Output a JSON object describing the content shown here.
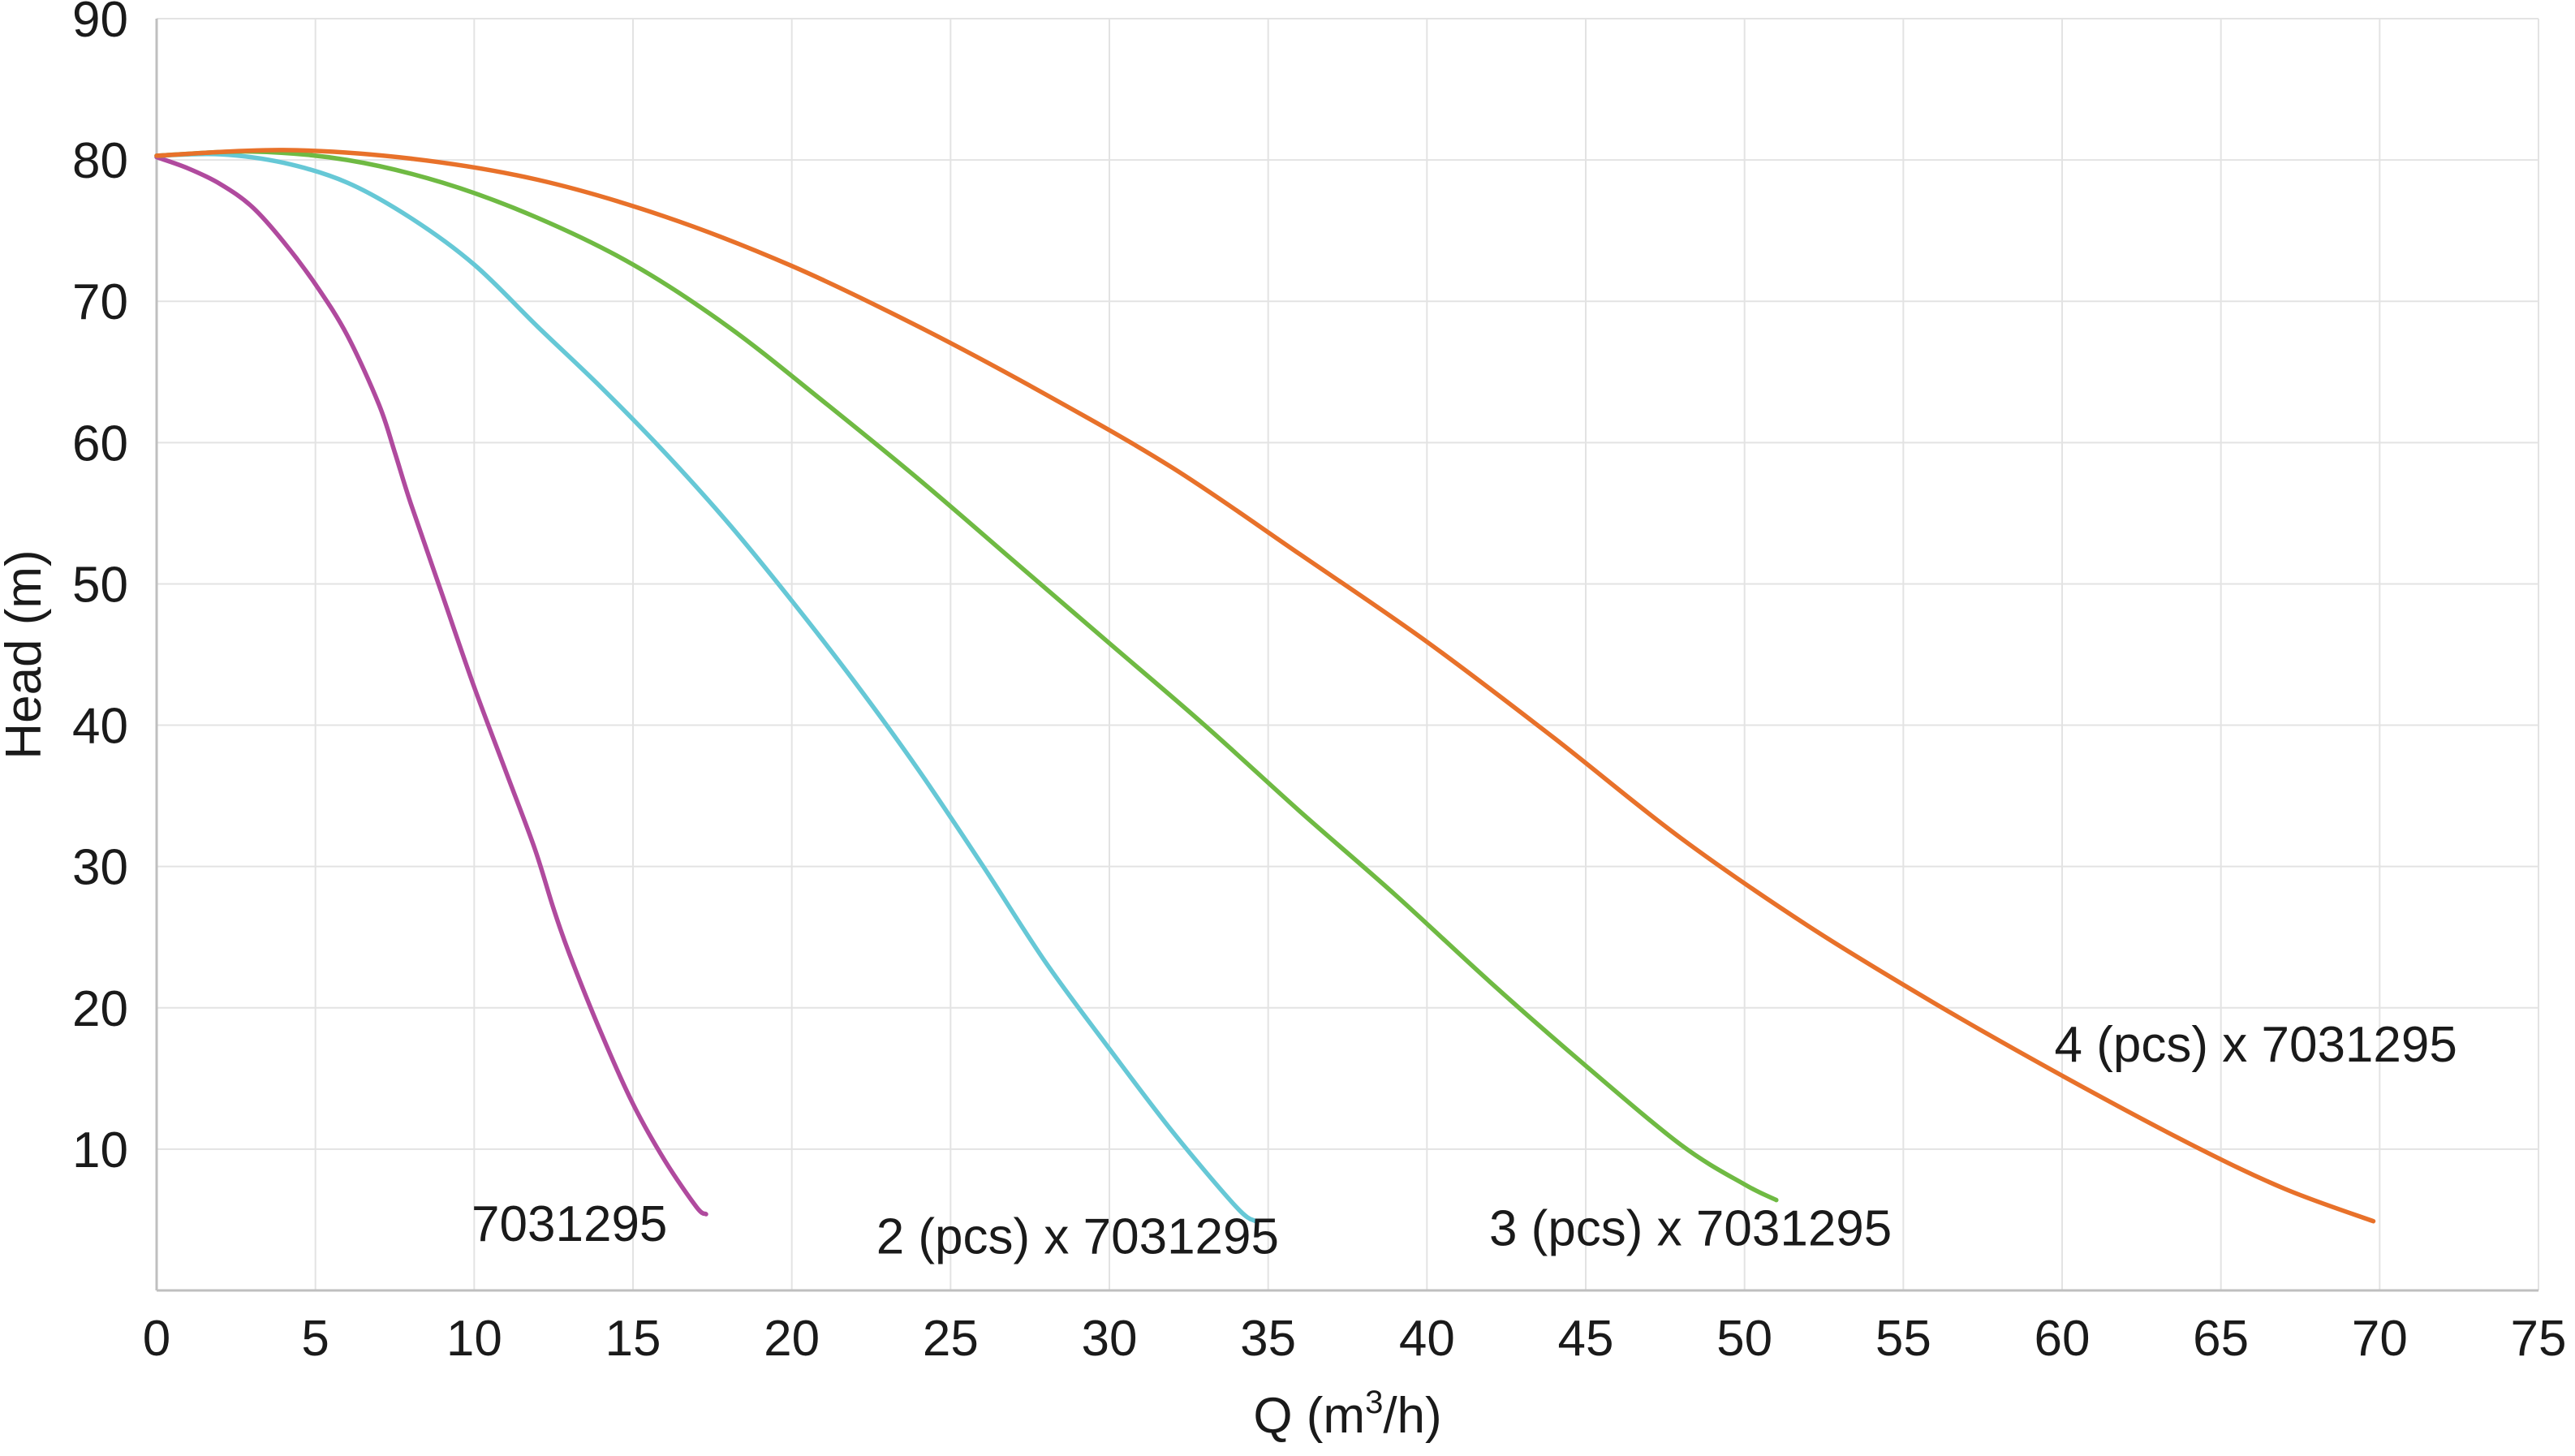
{
  "chart_data": {
    "type": "line",
    "title": "",
    "xlabel": "Q (m³/h)",
    "xlabel_parts": {
      "base": "Q (m",
      "sup": "3",
      "tail": "/h)"
    },
    "ylabel": "Head (m)",
    "xlim": [
      0,
      75
    ],
    "ylim": [
      0,
      90
    ],
    "x_ticks": [
      0,
      5,
      10,
      15,
      20,
      25,
      30,
      35,
      40,
      45,
      50,
      55,
      60,
      65,
      70,
      75
    ],
    "y_ticks": [
      10,
      20,
      30,
      40,
      50,
      60,
      70,
      80,
      90
    ],
    "grid": true,
    "legend": "none (series labelled directly on the plot)",
    "series": [
      {
        "name": "7031295",
        "color": "#b04a9e",
        "x": [
          0,
          1,
          2,
          3,
          4,
          5,
          6,
          7,
          7.5,
          8,
          9,
          10,
          11,
          11.9,
          12.5,
          13,
          14,
          15,
          16,
          17,
          17.3
        ],
        "y": [
          80.2,
          79.4,
          78.3,
          76.7,
          74.2,
          71.2,
          67.6,
          62.7,
          59.3,
          55.7,
          49.2,
          42.7,
          36.7,
          31.3,
          27.0,
          23.8,
          18.2,
          13.2,
          9.2,
          5.9,
          5.4
        ]
      },
      {
        "name": "2 (pcs) x 7031295",
        "color": "#66c8d6",
        "x": [
          0,
          2,
          4,
          6,
          8,
          10,
          12,
          14,
          16,
          18,
          20,
          22,
          24,
          26,
          28,
          30,
          32,
          34,
          34.6
        ],
        "y": [
          80.3,
          80.4,
          79.8,
          78.4,
          75.9,
          72.6,
          68.2,
          63.9,
          59.3,
          54.3,
          48.8,
          43.0,
          36.8,
          30.1,
          23.2,
          17.1,
          11.2,
          5.9,
          4.9
        ]
      },
      {
        "name": "3 (pcs) x 7031295",
        "color": "#6fba43",
        "x": [
          0,
          3,
          6,
          9,
          12,
          15,
          18,
          21,
          24,
          27,
          30,
          33,
          36,
          39,
          42,
          45,
          48,
          50,
          51
        ],
        "y": [
          80.3,
          80.6,
          80.0,
          78.4,
          75.9,
          72.6,
          68.2,
          62.9,
          57.4,
          51.6,
          45.8,
          40.0,
          33.9,
          28.0,
          21.8,
          15.9,
          10.3,
          7.5,
          6.4
        ]
      },
      {
        "name": "4 (pcs) x 7031295",
        "color": "#e8712a",
        "x": [
          0,
          4,
          8,
          12,
          16,
          20,
          24,
          28,
          32,
          36,
          40,
          44,
          48,
          52,
          56,
          60,
          64,
          67,
          69.8
        ],
        "y": [
          80.3,
          80.7,
          80.1,
          78.6,
          76.0,
          72.5,
          68.2,
          63.4,
          58.2,
          52.1,
          45.9,
          39.1,
          32.0,
          25.8,
          20.3,
          15.2,
          10.4,
          7.2,
          4.9
        ]
      }
    ],
    "annotations": [
      {
        "text": "7031295",
        "x": 13.0,
        "y": 3.5
      },
      {
        "text": "2 (pcs) x 7031295",
        "x": 29.0,
        "y": 2.6
      },
      {
        "text": "3 (pcs) x 7031295",
        "x": 48.3,
        "y": 3.2
      },
      {
        "text": "4 (pcs) x 7031295",
        "x": 66.1,
        "y": 16.2
      }
    ]
  }
}
